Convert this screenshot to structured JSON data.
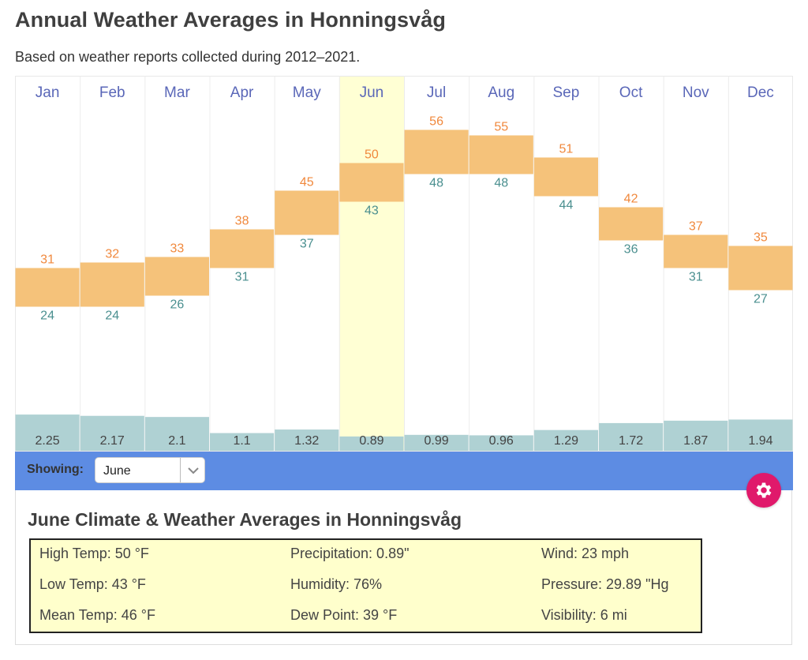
{
  "page": {
    "title": "Annual Weather Averages in Honningsvåg",
    "subtitle": "Based on weather reports collected during 2012–2021."
  },
  "colors": {
    "high_text": "#f0883c",
    "low_text": "#4a8f8f",
    "temp_band": "#f5c27a",
    "precip_bar": "#afd1d3",
    "month_label": "#5a67b8",
    "selected_column": "#ffffd4",
    "showing_bar": "#5d8ce3",
    "gear_button": "#e0196b"
  },
  "chart_data": {
    "type": "bar",
    "title": "Annual Weather Averages in Honningsvåg",
    "categories": [
      "Jan",
      "Feb",
      "Mar",
      "Apr",
      "May",
      "Jun",
      "Jul",
      "Aug",
      "Sep",
      "Oct",
      "Nov",
      "Dec"
    ],
    "series": [
      {
        "name": "High Temp (°F)",
        "values": [
          31,
          32,
          33,
          38,
          45,
          50,
          56,
          55,
          51,
          42,
          37,
          35
        ]
      },
      {
        "name": "Low Temp (°F)",
        "values": [
          24,
          24,
          26,
          31,
          37,
          43,
          48,
          48,
          44,
          36,
          31,
          27
        ]
      },
      {
        "name": "Precipitation (in)",
        "values": [
          2.25,
          2.17,
          2.1,
          1.1,
          1.32,
          0.89,
          0.99,
          0.96,
          1.29,
          1.72,
          1.87,
          1.94
        ],
        "labels": [
          "2.25",
          "2.17",
          "2.1",
          "1.1",
          "1.32",
          "0.89",
          "0.99",
          "0.96",
          "1.29",
          "1.72",
          "1.87",
          "1.94"
        ]
      }
    ],
    "selected_index": 5,
    "xlabel": "",
    "ylabel": "",
    "grid": false,
    "legend": "none"
  },
  "controls": {
    "showing_label": "Showing:",
    "selected_month": "June"
  },
  "detail": {
    "title": "June Climate & Weather Averages in Honningsvåg",
    "stats": [
      [
        "High Temp: 50 °F",
        "Precipitation: 0.89\"",
        "Wind: 23 mph"
      ],
      [
        "Low Temp: 43 °F",
        "Humidity: 76%",
        "Pressure: 29.89 \"Hg"
      ],
      [
        "Mean Temp: 46 °F",
        "Dew Point: 39 °F",
        "Visibility: 6 mi"
      ]
    ]
  }
}
